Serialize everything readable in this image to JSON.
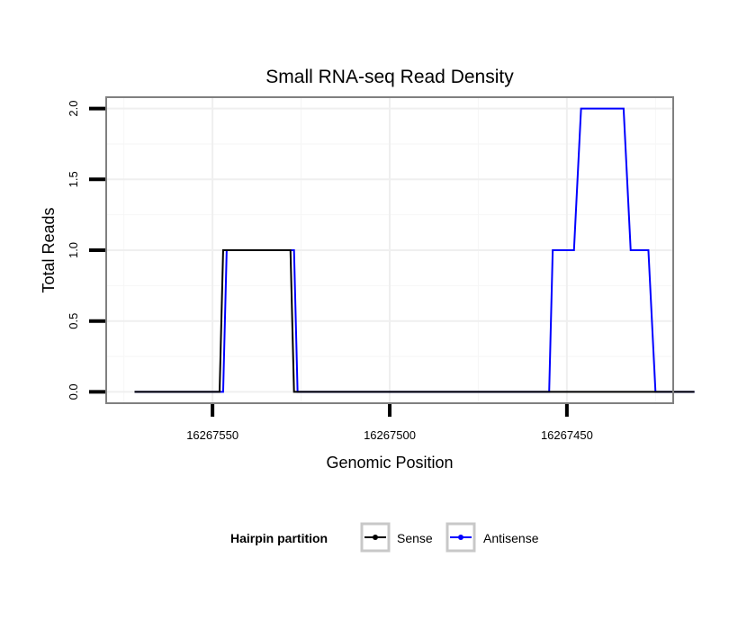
{
  "chart_data": {
    "type": "line",
    "title": "Small RNA-seq Read Density",
    "xlabel": "Genomic Position",
    "ylabel": "Total Reads",
    "x_reversed": true,
    "xlim": [
      16267580,
      16267420
    ],
    "ylim": [
      -0.08,
      2.08
    ],
    "xticks": [
      16267550,
      16267500,
      16267450
    ],
    "xtick_labels": [
      "16267550",
      "16267500",
      "16267450"
    ],
    "yticks": [
      0,
      0.5,
      1,
      1.5,
      2
    ],
    "ytick_labels": [
      "0.0",
      "0.5",
      "1.0",
      "1.5",
      "2.0"
    ],
    "grid": true,
    "legend": {
      "title": "Hairpin partition",
      "position": "bottom"
    },
    "series": [
      {
        "name": "Sense",
        "color": "#000000",
        "x": [
          16267572,
          16267548,
          16267547,
          16267528,
          16267527,
          16267414
        ],
        "y": [
          0,
          0,
          1,
          1,
          0,
          0
        ]
      },
      {
        "name": "Antisense",
        "color": "#0000ff",
        "x": [
          16267572,
          16267547,
          16267546,
          16267527,
          16267526,
          16267455,
          16267454,
          16267448,
          16267446,
          16267434,
          16267432,
          16267427,
          16267425,
          16267414
        ],
        "y": [
          0,
          0,
          1,
          1,
          0,
          0,
          1,
          1,
          2,
          2,
          1,
          1,
          0,
          0
        ]
      }
    ]
  }
}
